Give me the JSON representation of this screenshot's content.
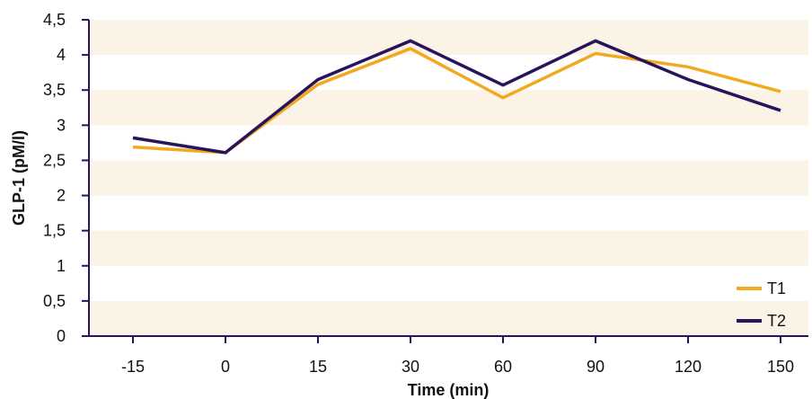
{
  "chart_data": {
    "type": "line",
    "title": "",
    "xlabel": "Time (min)",
    "ylabel": "GLP-1 (pM/l)",
    "categories": [
      "-15",
      "0",
      "15",
      "30",
      "60",
      "90",
      "120",
      "150"
    ],
    "ylim": [
      0,
      4.5
    ],
    "yticks": [
      0,
      0.5,
      1,
      1.5,
      2,
      2.5,
      3,
      3.5,
      4,
      4.5
    ],
    "ytick_labels": [
      "0",
      "0,5",
      "1",
      "1,5",
      "2",
      "2,5",
      "3",
      "3,5",
      "4",
      "4,5"
    ],
    "grid": false,
    "band_color": "#fbf3e6",
    "legend_position": "bottom-right",
    "series": [
      {
        "name": "T1",
        "color": "#f2a91f",
        "values": [
          2.69,
          2.61,
          3.58,
          4.09,
          3.39,
          4.02,
          3.83,
          3.48
        ]
      },
      {
        "name": "T2",
        "color": "#29145c",
        "values": [
          2.82,
          2.61,
          3.65,
          4.2,
          3.57,
          4.2,
          3.65,
          3.21
        ]
      }
    ]
  }
}
